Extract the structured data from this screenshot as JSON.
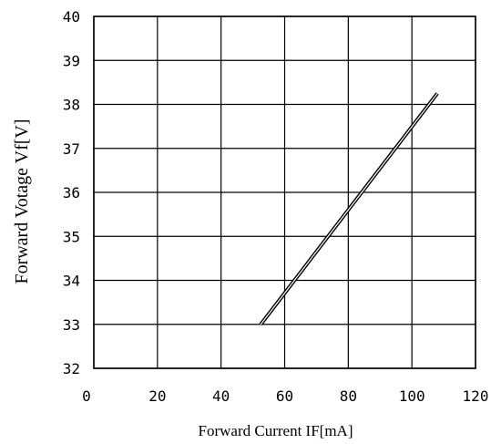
{
  "chart_data": {
    "type": "line",
    "xlabel": "Forward Current IF[mA]",
    "ylabel": "Forward Votage Vf[V]",
    "xlim": [
      0,
      120
    ],
    "ylim": [
      32,
      40
    ],
    "x_ticks": [
      "0",
      "20",
      "40",
      "60",
      "80",
      "100",
      "120"
    ],
    "y_ticks": [
      "32",
      "33",
      "34",
      "35",
      "36",
      "37",
      "38",
      "39",
      "40"
    ],
    "grid": true,
    "series": [
      {
        "color": "#000000",
        "points": [
          {
            "x": 52.5,
            "y": 33.0
          },
          {
            "x": 108.0,
            "y": 38.25
          }
        ]
      }
    ]
  }
}
